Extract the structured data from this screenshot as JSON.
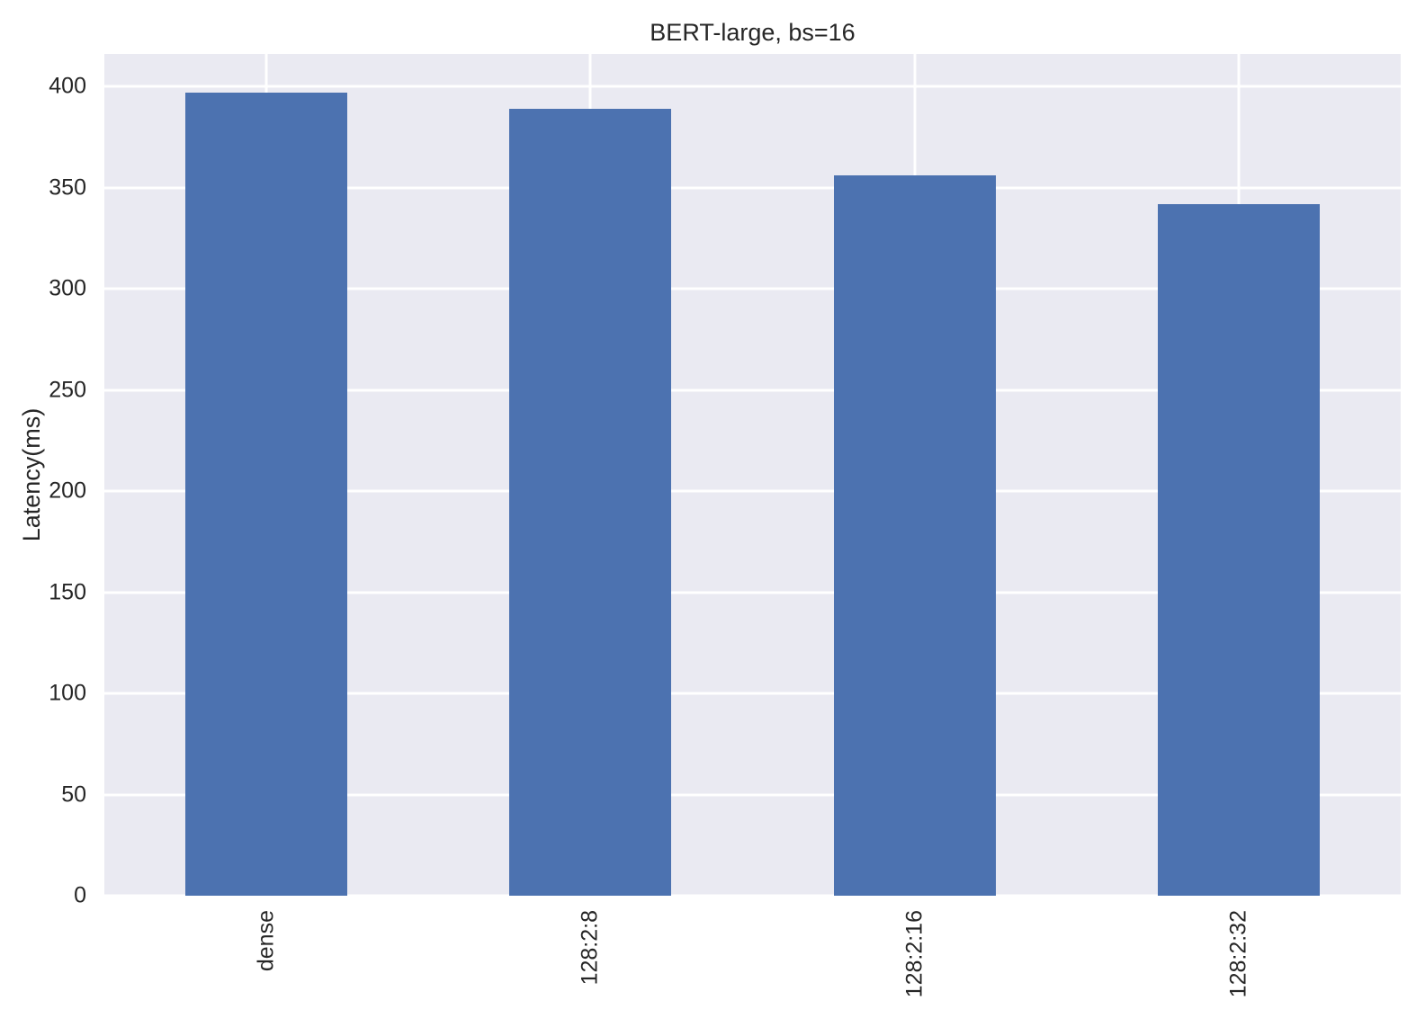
{
  "chart_data": {
    "type": "bar",
    "title": "BERT-large, bs=16",
    "categories": [
      "dense",
      "128:2:8",
      "128:2:16",
      "128:2:32"
    ],
    "values": [
      397,
      389,
      356,
      342
    ],
    "xlabel": "",
    "ylabel": "Latency(ms)",
    "ylim": [
      0,
      416
    ],
    "yticks": [
      0,
      50,
      100,
      150,
      200,
      250,
      300,
      350,
      400
    ],
    "grid": true,
    "legend": "none",
    "bar_width_frac": 0.5,
    "colors": {
      "bar": "#4c72b0",
      "plot_background": "#eaeaf2",
      "gridline": "#ffffff",
      "text": "#262626",
      "figure_background": "#ffffff"
    }
  }
}
